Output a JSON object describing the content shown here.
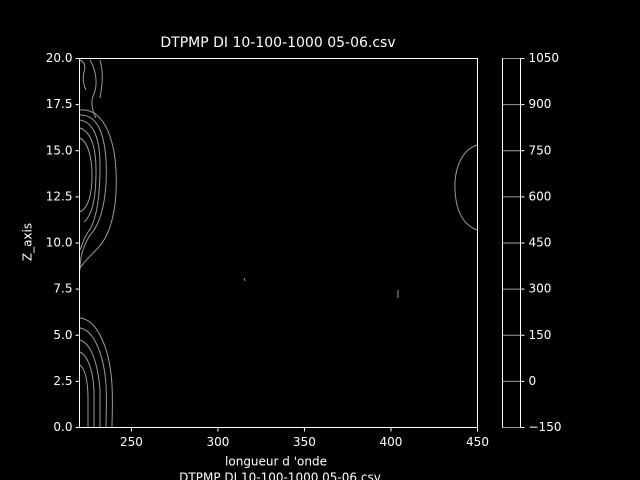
{
  "chart_data": {
    "type": "contour",
    "title": "DTPMP DI 10-100-1000 05-06.csv",
    "xlabel": "longueur d 'onde",
    "ylabel": "Z_axis",
    "footer_text": "DTPMP DI 10-100-1000 05-06.csv",
    "xlim": [
      220,
      450
    ],
    "xticks": [
      250,
      300,
      350,
      400,
      450
    ],
    "ylim": [
      0,
      20
    ],
    "yticks": [
      {
        "value": 0,
        "label": "0.0"
      },
      {
        "value": 2.5,
        "label": "2.5"
      },
      {
        "value": 5,
        "label": "5.0"
      },
      {
        "value": 7.5,
        "label": "7.5"
      },
      {
        "value": 10,
        "label": "10.0"
      },
      {
        "value": 12.5,
        "label": "12.5"
      },
      {
        "value": 15,
        "label": "15.0"
      },
      {
        "value": 17.5,
        "label": "17.5"
      },
      {
        "value": 20,
        "label": "20.0"
      }
    ],
    "colorbar_lim": [
      -150,
      1050
    ],
    "colorbar_ticks": [
      {
        "value": -150,
        "label": "−150"
      },
      0,
      150,
      300,
      450,
      600,
      750,
      900,
      1050
    ],
    "line_color": "#9a9a9a"
  }
}
